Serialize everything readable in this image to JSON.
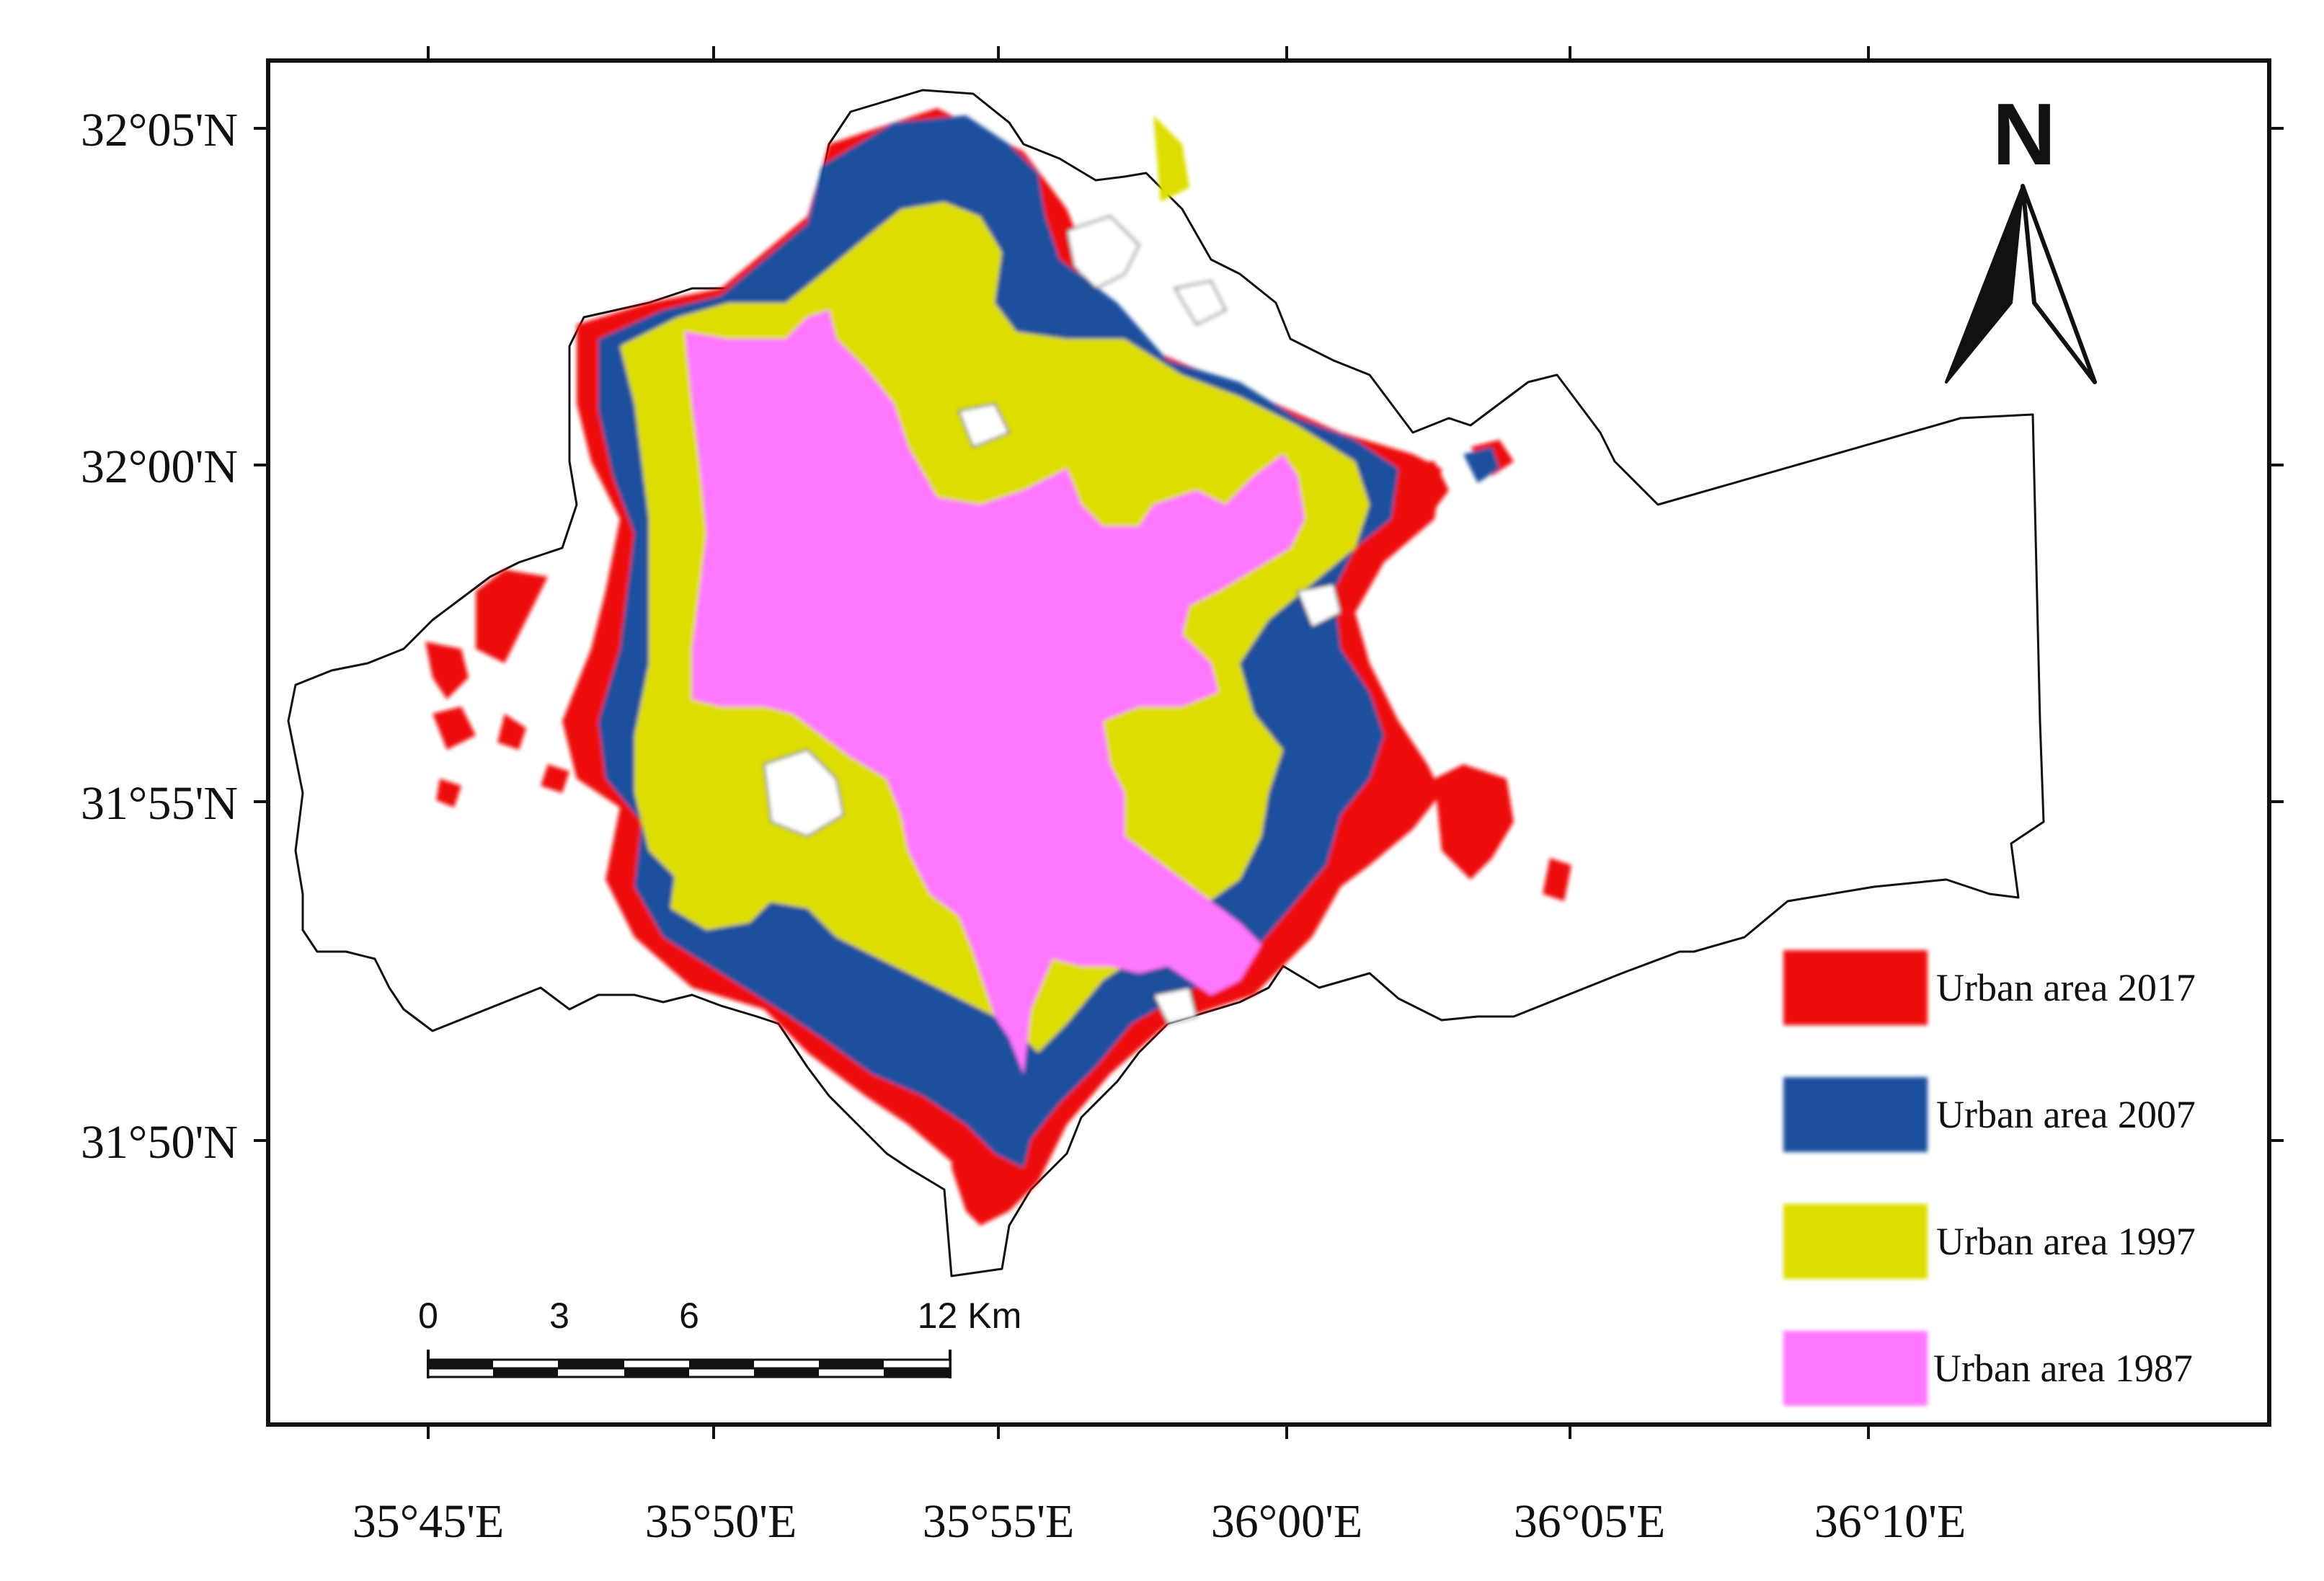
{
  "map": {
    "north_arrow": {
      "letter": "N",
      "icon": "north-arrow-icon"
    },
    "lat_labels": [
      "32°05'N",
      "32°00'N",
      "31°55'N",
      "31°50'N"
    ],
    "lon_labels": [
      "35°45'E",
      "35°50'E",
      "35°55'E",
      "36°00'E",
      "36°05'E",
      "36°10'E"
    ],
    "scale_bar": {
      "labels": [
        "0",
        "3",
        "6",
        "12 Km"
      ]
    },
    "legend": [
      {
        "label": "Urban area 2017",
        "color": "#ee1111"
      },
      {
        "label": "Urban area 2007",
        "color": "#1a4f9e"
      },
      {
        "label": "Urban area 1997",
        "color": "#dddd00"
      },
      {
        "label": "Urban area 1987",
        "color": "#ff77ff"
      }
    ],
    "colors": {
      "outline": "#111111",
      "frame": "#111111",
      "background": "#ffffff"
    }
  }
}
